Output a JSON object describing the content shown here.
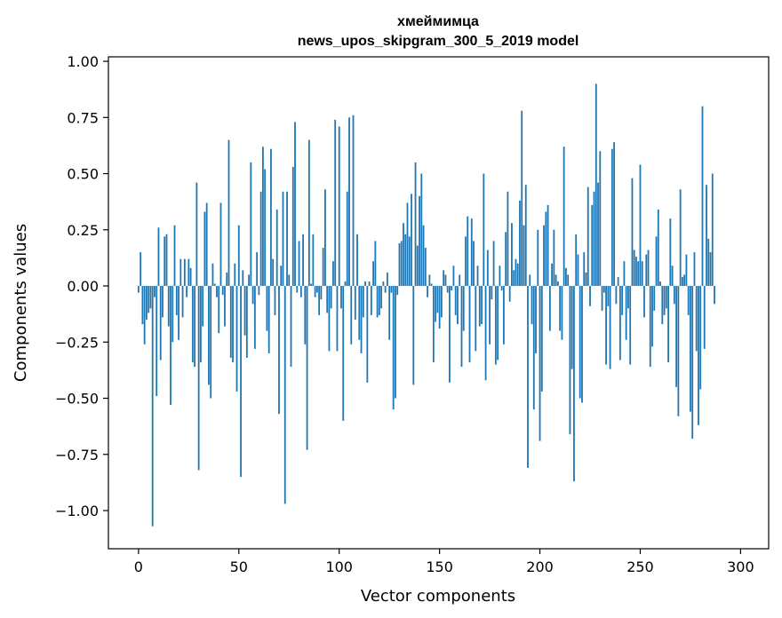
{
  "chart_data": {
    "type": "bar",
    "title": "хмеймимца",
    "subtitle": "news_upos_skipgram_300_5_2019 model",
    "xlabel": "Vector components",
    "ylabel": "Components values",
    "xlim": [
      -15,
      314
    ],
    "ylim": [
      -1.17,
      1.02
    ],
    "xticks": [
      0,
      50,
      100,
      150,
      200,
      250,
      300
    ],
    "yticks": [
      -1.0,
      -0.75,
      -0.5,
      -0.25,
      0.0,
      0.25,
      0.5,
      0.75,
      1.0
    ],
    "ytick_labels": [
      "−1.00",
      "−0.75",
      "−0.50",
      "−0.25",
      "0.00",
      "0.25",
      "0.50",
      "0.75",
      "1.00"
    ],
    "bar_color": "#1f77b4",
    "grid": false,
    "values": [
      -0.03,
      0.15,
      -0.17,
      -0.26,
      -0.15,
      -0.12,
      -0.1,
      -1.07,
      -0.05,
      -0.49,
      0.26,
      -0.33,
      -0.14,
      0.22,
      0.23,
      -0.18,
      -0.53,
      -0.25,
      0.27,
      -0.13,
      -0.24,
      0.12,
      -0.14,
      0.12,
      -0.05,
      0.12,
      0.08,
      -0.34,
      -0.36,
      0.46,
      -0.82,
      -0.34,
      -0.18,
      0.33,
      0.37,
      -0.44,
      -0.5,
      0.1,
      0.01,
      -0.05,
      -0.21,
      0.37,
      -0.04,
      -0.18,
      0.06,
      0.65,
      -0.32,
      -0.34,
      0.1,
      -0.47,
      0.27,
      -0.85,
      0.07,
      -0.22,
      -0.32,
      0.05,
      0.55,
      -0.08,
      -0.28,
      0.15,
      -0.04,
      0.42,
      0.62,
      0.52,
      -0.2,
      -0.3,
      0.61,
      0.12,
      -0.13,
      0.34,
      -0.57,
      0.09,
      0.42,
      -0.97,
      0.42,
      0.05,
      -0.36,
      0.53,
      0.73,
      -0.03,
      0.2,
      -0.05,
      0.23,
      -0.26,
      -0.73,
      0.65,
      0.01,
      0.23,
      -0.05,
      -0.03,
      -0.13,
      -0.06,
      0.17,
      0.43,
      -0.12,
      -0.29,
      -0.1,
      0.11,
      0.74,
      -0.29,
      0.71,
      -0.1,
      -0.6,
      0.02,
      0.42,
      0.75,
      -0.26,
      0.76,
      -0.15,
      0.23,
      -0.24,
      -0.3,
      -0.14,
      0.02,
      -0.43,
      0.02,
      -0.13,
      0.11,
      0.2,
      -0.14,
      -0.13,
      -0.1,
      0.02,
      -0.03,
      0.06,
      -0.24,
      -0.03,
      -0.55,
      -0.5,
      -0.04,
      0.19,
      0.2,
      0.28,
      0.23,
      0.37,
      0.22,
      0.41,
      -0.44,
      0.55,
      0.18,
      0.4,
      0.5,
      0.27,
      0.17,
      -0.05,
      0.05,
      0.01,
      -0.34,
      -0.16,
      -0.12,
      -0.19,
      -0.14,
      0.07,
      0.05,
      -0.03,
      -0.43,
      -0.02,
      0.09,
      -0.13,
      -0.17,
      0.05,
      -0.36,
      -0.2,
      0.22,
      0.31,
      -0.34,
      0.3,
      0.2,
      -0.29,
      0.09,
      -0.18,
      -0.17,
      0.5,
      -0.42,
      0.16,
      -0.26,
      -0.06,
      0.2,
      -0.35,
      -0.33,
      0.09,
      -0.02,
      -0.26,
      0.24,
      0.42,
      -0.07,
      0.28,
      0.07,
      0.12,
      0.1,
      0.38,
      0.78,
      0.27,
      0.45,
      -0.81,
      0.05,
      -0.17,
      -0.55,
      -0.3,
      0.25,
      -0.69,
      -0.47,
      0.27,
      0.33,
      0.36,
      -0.2,
      0.1,
      0.25,
      0.05,
      0.02,
      -0.2,
      -0.24,
      0.62,
      0.08,
      0.05,
      -0.66,
      -0.37,
      -0.87,
      0.23,
      0.14,
      -0.5,
      -0.52,
      0.15,
      0.06,
      0.44,
      -0.09,
      0.36,
      0.42,
      0.9,
      0.46,
      0.6,
      -0.11,
      -0.03,
      -0.35,
      -0.09,
      -0.37,
      0.61,
      0.64,
      -0.08,
      0.04,
      -0.33,
      -0.13,
      0.11,
      -0.24,
      -0.1,
      -0.35,
      0.48,
      0.16,
      0.13,
      0.11,
      0.54,
      0.11,
      -0.14,
      0.14,
      0.16,
      -0.36,
      -0.27,
      -0.11,
      0.22,
      0.34,
      0.02,
      -0.17,
      -0.13,
      -0.1,
      -0.34,
      0.3,
      0.09,
      -0.08,
      -0.45,
      -0.58,
      0.43,
      0.04,
      0.05,
      0.14,
      -0.13,
      -0.56,
      -0.68,
      0.15,
      -0.29,
      -0.62,
      -0.46,
      0.8,
      -0.28,
      0.45,
      0.21,
      0.15,
      0.5,
      -0.08
    ]
  }
}
